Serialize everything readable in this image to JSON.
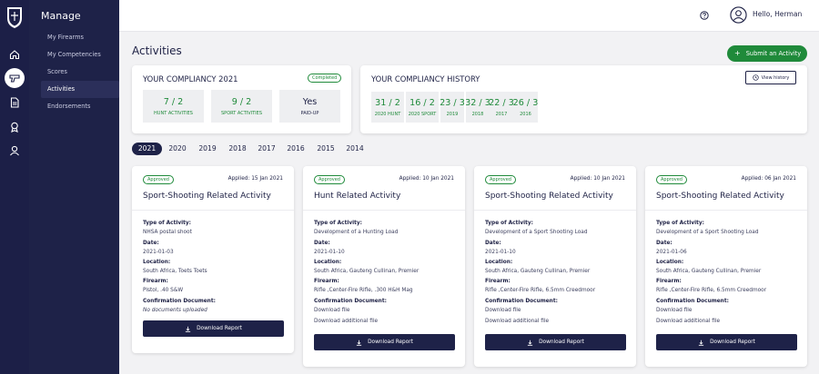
{
  "menu": {
    "title": "Manage",
    "items": [
      {
        "label": "My Firearms"
      },
      {
        "label": "My Competencies"
      },
      {
        "label": "Scores"
      },
      {
        "label": "Activities"
      },
      {
        "label": "Endorsements"
      }
    ],
    "active_index": 3
  },
  "rail": {
    "icons": [
      "home-icon",
      "firearm-icon",
      "document-icon",
      "award-icon",
      "user-icon"
    ],
    "active_icon": "firearm-icon"
  },
  "topbar": {
    "greeting": "Hello, Herman",
    "help_icon": "help-icon",
    "avatar_icon": "avatar-icon"
  },
  "page": {
    "title": "Activities",
    "submit_label": "Submit an Activity"
  },
  "compliancy": {
    "title": "YOUR COMPLIANCY 2021",
    "status": "Completed",
    "stats": [
      {
        "value": "7 / 2",
        "label": "HUNT ACTIVITIES"
      },
      {
        "value": "9 / 2",
        "label": "SPORT ACTIVITIES"
      },
      {
        "value": "Yes",
        "label": "PAID-UP"
      }
    ]
  },
  "history": {
    "title": "YOUR COMPLIANCY HISTORY",
    "view_label": "View history",
    "stats": [
      {
        "value": "31 / 2",
        "label": "2020 HUNT"
      },
      {
        "value": "16 / 2",
        "label": "2020 SPORT"
      },
      {
        "value": "23 / 3",
        "label": "2019"
      },
      {
        "value": "32 / 3",
        "label": "2018"
      },
      {
        "value": "22 / 3",
        "label": "2017"
      },
      {
        "value": "26 / 3",
        "label": "2016"
      }
    ]
  },
  "years": [
    "2021",
    "2020",
    "2019",
    "2018",
    "2017",
    "2016",
    "2015",
    "2014"
  ],
  "active_year": "2021",
  "cards": [
    {
      "status": "Approved",
      "applied": "Applied: 15 Jan 2021",
      "title": "Sport-Shooting Related Activity",
      "type_label": "Type of Activity:",
      "type": "NHSA postal shoot",
      "date_label": "Date:",
      "date": "2021-01-03",
      "location_label": "Location:",
      "location": "South Africa, Toets Toets",
      "firearm_label": "Firearm:",
      "firearm": "Pistol, .40 S&W",
      "doc_label": "Confirmation Document:",
      "doc_lines": [
        "No documents uploaded"
      ],
      "button": "Download Report"
    },
    {
      "status": "Approved",
      "applied": "Applied: 10 Jan 2021",
      "title": "Hunt Related Activity",
      "type_label": "Type of Activity:",
      "type": "Development of a Hunting Load",
      "date_label": "Date:",
      "date": "2021-01-10",
      "location_label": "Location:",
      "location": "South Africa, Gauteng Cullinan, Premier",
      "firearm_label": "Firearm:",
      "firearm": "Rifle ,Center-Fire Rifle, .300 H&H Mag",
      "doc_label": "Confirmation Document:",
      "doc_lines": [
        "Download file",
        "Download additional file"
      ],
      "button": "Download Report"
    },
    {
      "status": "Approved",
      "applied": "Applied: 10 Jan 2021",
      "title": "Sport-Shooting Related Activity",
      "type_label": "Type of Activity:",
      "type": "Development of a Sport Shooting Load",
      "date_label": "Date:",
      "date": "2021-01-10",
      "location_label": "Location:",
      "location": "South Africa, Gauteng Cullinan, Premier",
      "firearm_label": "Firearm:",
      "firearm": "Rifle ,Center-Fire Rifle, 6.5mm Creedmoor",
      "doc_label": "Confirmation Document:",
      "doc_lines": [
        "Download file",
        "Download additional file"
      ],
      "button": "Download Report"
    },
    {
      "status": "Approved",
      "applied": "Applied: 06 Jan 2021",
      "title": "Sport-Shooting Related Activity",
      "type_label": "Type of Activity:",
      "type": "Development of a Sport Shooting Load",
      "date_label": "Date:",
      "date": "2021-01-06",
      "location_label": "Location:",
      "location": "South Africa, Gauteng Cullinan, Premier",
      "firearm_label": "Firearm:",
      "firearm": "Rifle ,Center-Fire Rifle, 6.5mm Creedmoor",
      "doc_label": "Confirmation Document:",
      "doc_lines": [
        "Download file",
        "Download additional file"
      ],
      "button": "Download Report"
    }
  ],
  "colors": {
    "navy": "#1e2248",
    "green": "#1f8a3a",
    "background": "#f2f2f4"
  }
}
